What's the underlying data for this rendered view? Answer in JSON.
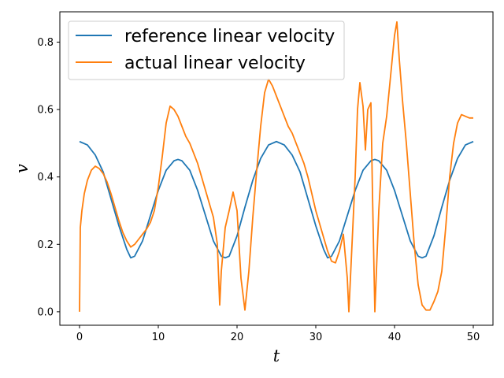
{
  "chart_data": {
    "type": "line",
    "title": "",
    "xlabel": "t",
    "ylabel": "v",
    "xlim": [
      -2.5,
      52.5
    ],
    "ylim": [
      -0.04,
      0.89
    ],
    "xticks": [
      0,
      10,
      20,
      30,
      40,
      50
    ],
    "xtick_labels": [
      "0",
      "10",
      "20",
      "30",
      "40",
      "50"
    ],
    "yticks": [
      0.0,
      0.2,
      0.4,
      0.6,
      0.8
    ],
    "ytick_labels": [
      "0.0",
      "0.2",
      "0.4",
      "0.6",
      "0.8"
    ],
    "grid": false,
    "legend": {
      "position": "top-left"
    },
    "series": [
      {
        "name": "reference linear velocity",
        "color": "#1f77b4",
        "x": [
          0,
          1,
          2,
          3,
          4,
          5,
          6,
          6.5,
          7,
          8,
          9,
          10,
          11,
          12,
          12.5,
          13,
          14,
          15,
          16,
          17,
          18,
          18.5,
          19,
          20,
          21,
          22,
          23,
          24,
          25,
          26,
          27,
          28,
          29,
          30,
          31,
          31.5,
          32,
          33,
          34,
          35,
          36,
          37,
          37.5,
          38,
          39,
          40,
          41,
          42,
          43,
          43.5,
          44,
          45,
          46,
          47,
          48,
          49,
          50
        ],
        "y": [
          0.505,
          0.495,
          0.465,
          0.415,
          0.335,
          0.255,
          0.185,
          0.16,
          0.165,
          0.21,
          0.285,
          0.36,
          0.42,
          0.448,
          0.452,
          0.448,
          0.42,
          0.36,
          0.285,
          0.21,
          0.165,
          0.16,
          0.165,
          0.225,
          0.31,
          0.39,
          0.455,
          0.495,
          0.505,
          0.495,
          0.465,
          0.415,
          0.335,
          0.255,
          0.185,
          0.16,
          0.165,
          0.21,
          0.285,
          0.36,
          0.42,
          0.448,
          0.452,
          0.448,
          0.42,
          0.36,
          0.285,
          0.21,
          0.165,
          0.16,
          0.165,
          0.225,
          0.31,
          0.39,
          0.455,
          0.495,
          0.505
        ]
      },
      {
        "name": "actual linear velocity",
        "color": "#ff7f0e",
        "x": [
          0,
          0.1,
          0.3,
          0.6,
          1,
          1.5,
          2,
          2.5,
          3,
          3.5,
          4,
          4.5,
          5,
          5.5,
          6,
          6.5,
          7,
          7.5,
          8,
          8.5,
          9,
          9.5,
          10,
          10.5,
          11,
          11.5,
          12,
          12.5,
          13,
          13.5,
          14,
          15,
          16,
          16.5,
          17,
          17.5,
          17.8,
          18,
          18.5,
          19,
          19.5,
          20,
          20.5,
          21,
          21.5,
          22,
          22.5,
          23,
          23.5,
          24,
          24.5,
          25,
          25.5,
          26,
          26.5,
          27,
          27.5,
          28,
          28.5,
          29,
          29.5,
          30,
          30.5,
          31,
          31.5,
          32,
          32.5,
          33,
          33.5,
          34,
          34.2,
          34.5,
          35,
          35.3,
          35.6,
          36,
          36.3,
          36.6,
          37,
          37.2,
          37.5,
          38,
          38.5,
          39,
          39.5,
          40,
          40.3,
          40.6,
          41,
          41.5,
          42,
          42.5,
          43,
          43.5,
          44,
          44.5,
          45,
          45.5,
          46,
          46.5,
          47,
          47.5,
          48,
          48.5,
          49,
          49.5,
          50
        ],
        "y": [
          0.0,
          0.25,
          0.3,
          0.35,
          0.39,
          0.42,
          0.432,
          0.425,
          0.41,
          0.385,
          0.35,
          0.31,
          0.27,
          0.235,
          0.21,
          0.192,
          0.2,
          0.215,
          0.23,
          0.245,
          0.265,
          0.3,
          0.37,
          0.46,
          0.56,
          0.61,
          0.6,
          0.58,
          0.55,
          0.52,
          0.5,
          0.44,
          0.36,
          0.32,
          0.28,
          0.2,
          0.02,
          0.12,
          0.25,
          0.3,
          0.355,
          0.3,
          0.1,
          0.005,
          0.12,
          0.28,
          0.42,
          0.55,
          0.65,
          0.69,
          0.67,
          0.64,
          0.61,
          0.58,
          0.55,
          0.53,
          0.5,
          0.47,
          0.44,
          0.4,
          0.35,
          0.3,
          0.26,
          0.22,
          0.18,
          0.15,
          0.145,
          0.18,
          0.23,
          0.1,
          0.0,
          0.15,
          0.4,
          0.6,
          0.68,
          0.61,
          0.48,
          0.6,
          0.62,
          0.35,
          0.0,
          0.3,
          0.5,
          0.58,
          0.7,
          0.82,
          0.86,
          0.75,
          0.63,
          0.5,
          0.35,
          0.2,
          0.08,
          0.02,
          0.005,
          0.005,
          0.03,
          0.06,
          0.12,
          0.25,
          0.4,
          0.5,
          0.56,
          0.585,
          0.58,
          0.575,
          0.575
        ]
      }
    ]
  }
}
